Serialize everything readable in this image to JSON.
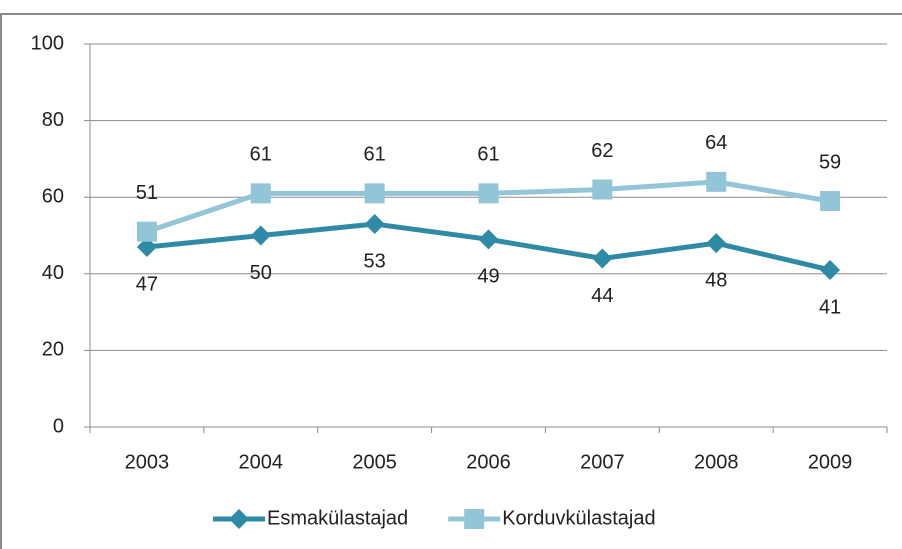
{
  "chart_data": {
    "type": "line",
    "categories": [
      "2003",
      "2004",
      "2005",
      "2006",
      "2007",
      "2008",
      "2009"
    ],
    "series": [
      {
        "name": "Esmakülastajad",
        "color": "#2f8aa5",
        "marker": "diamond",
        "values": [
          47,
          50,
          53,
          49,
          44,
          48,
          41
        ]
      },
      {
        "name": "Korduvkülastajad",
        "color": "#93c5d8",
        "marker": "square",
        "values": [
          51,
          61,
          61,
          61,
          62,
          64,
          59
        ]
      }
    ],
    "ylim": [
      0,
      100
    ],
    "yticks": [
      0,
      20,
      40,
      60,
      80,
      100
    ],
    "grid": true,
    "legend": "bottom"
  }
}
